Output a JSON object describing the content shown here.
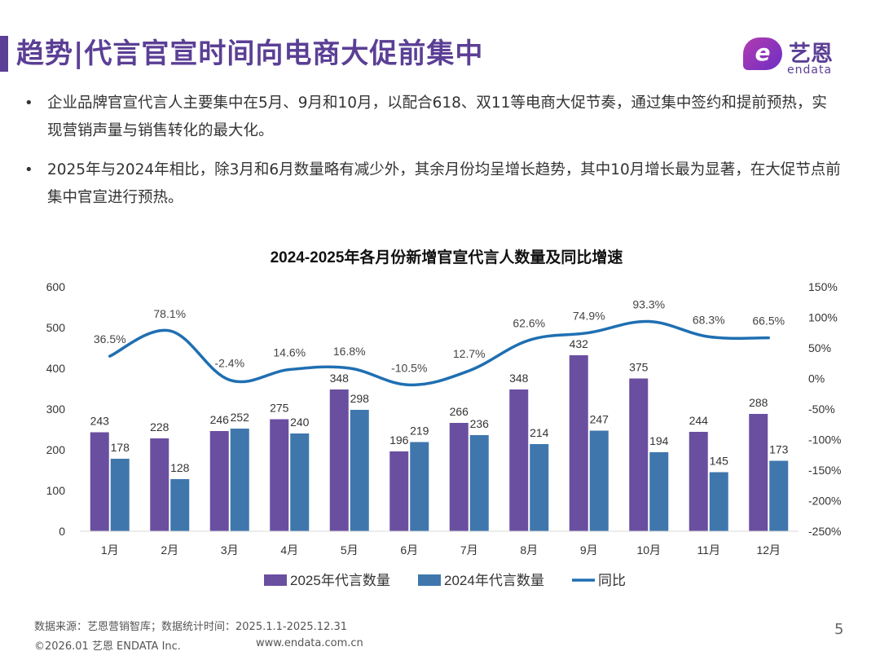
{
  "page": {
    "title": "趋势|代言官宣时间向电商大促前集中",
    "page_number": "5"
  },
  "logo": {
    "badge_glyph": "e",
    "name_cn": "艺恩",
    "name_en": "endata"
  },
  "bullets": [
    "企业品牌官宣代言人主要集中在5月、9月和10月，以配合618、双11等电商大促节奏，通过集中签约和提前预热，实现营销声量与销售转化的最大化。",
    "2025年与2024年相比，除3月和6月数量略有减少外，其余月份均呈增长趋势，其中10月增长最为显著，在大促节点前集中官宣进行预热。"
  ],
  "footer": {
    "source": "数据来源：艺恩营销智库；数据统计时间：2025.1.1-2025.12.31",
    "copyright": "©2026.01 艺恩 ENDATA Inc.",
    "url": "www.endata.com.cn"
  },
  "chart_data": {
    "type": "bar",
    "title": "2024-2025年各月份新增官宣代言人数量及同比增速",
    "categories": [
      "1月",
      "2月",
      "3月",
      "4月",
      "5月",
      "6月",
      "7月",
      "8月",
      "9月",
      "10月",
      "11月",
      "12月"
    ],
    "series": [
      {
        "name": "2025年代言数量",
        "type": "bar",
        "axis": "left",
        "color": "#6a4fa0",
        "values": [
          243,
          228,
          246,
          275,
          348,
          196,
          266,
          348,
          432,
          375,
          244,
          288
        ]
      },
      {
        "name": "2024年代言数量",
        "type": "bar",
        "axis": "left",
        "color": "#3f77ad",
        "values": [
          178,
          128,
          252,
          240,
          298,
          219,
          236,
          214,
          247,
          194,
          145,
          173
        ]
      },
      {
        "name": "同比",
        "type": "line",
        "axis": "right",
        "color": "#1f6fb2",
        "values": [
          36.5,
          78.1,
          -2.4,
          14.6,
          16.8,
          -10.5,
          12.7,
          62.6,
          74.9,
          93.3,
          68.3,
          66.5
        ],
        "labels": [
          "36.5%",
          "78.1%",
          "-2.4%",
          "14.6%",
          "16.8%",
          "-10.5%",
          "12.7%",
          "62.6%",
          "74.9%",
          "93.3%",
          "68.3%",
          "66.5%"
        ]
      }
    ],
    "y_left": {
      "min": 0,
      "max": 600,
      "ticks": [
        "0",
        "100",
        "200",
        "300",
        "400",
        "500",
        "600"
      ]
    },
    "y_right": {
      "min": -250,
      "max": 150,
      "ticks": [
        "-250%",
        "-200%",
        "-150%",
        "-100%",
        "-50%",
        "0%",
        "50%",
        "100%",
        "150%"
      ]
    },
    "grid": false,
    "legend_position": "bottom"
  }
}
